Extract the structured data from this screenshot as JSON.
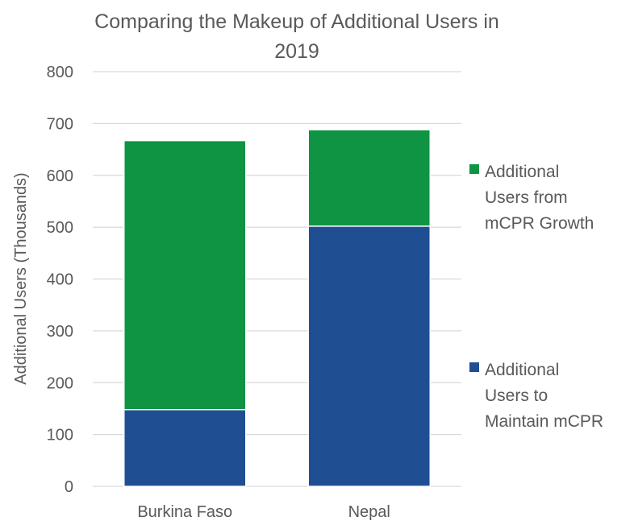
{
  "chart_data": {
    "type": "bar",
    "stacked": true,
    "title_lines": [
      "Comparing the Makeup of Additional Users in",
      "2019"
    ],
    "xlabel": "",
    "ylabel": "Additional Users (Thousands)",
    "categories": [
      "Burkina Faso",
      "Nepal"
    ],
    "ylim": [
      0,
      800
    ],
    "yticks": [
      0,
      100,
      200,
      300,
      400,
      500,
      600,
      700,
      800
    ],
    "grid": true,
    "legend_position": "right",
    "series": [
      {
        "name": "Additional Users to Maintain mCPR",
        "legend_lines": [
          "Additional",
          "Users to",
          "Maintain mCPR"
        ],
        "color": "#1f4e93",
        "values": [
          148,
          502
        ]
      },
      {
        "name": "Additional Users from mCPR Growth",
        "legend_lines": [
          "Additional",
          "Users from",
          "mCPR Growth"
        ],
        "color": "#0e9443",
        "values": [
          519,
          186
        ]
      }
    ]
  }
}
